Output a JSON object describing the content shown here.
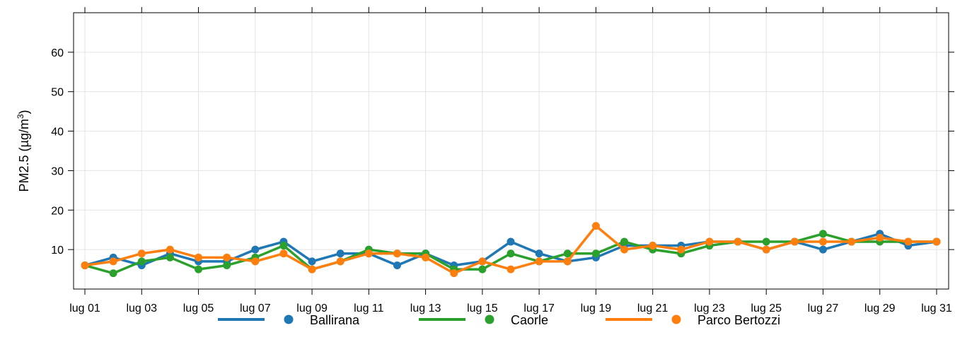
{
  "chart_data": {
    "type": "line",
    "ylabel": "PM2.5 (µg/m³)",
    "ylabel_parts": {
      "main": "PM2.5 (µg/m",
      "sup": "3",
      "close": ")"
    },
    "xlabel": "",
    "x": [
      "lug 01",
      "lug 02",
      "lug 03",
      "lug 04",
      "lug 05",
      "lug 06",
      "lug 07",
      "lug 08",
      "lug 09",
      "lug 10",
      "lug 11",
      "lug 12",
      "lug 13",
      "lug 14",
      "lug 15",
      "lug 16",
      "lug 17",
      "lug 18",
      "lug 19",
      "lug 20",
      "lug 21",
      "lug 22",
      "lug 23",
      "lug 24",
      "lug 25",
      "lug 26",
      "lug 27",
      "lug 28",
      "lug 29",
      "lug 30",
      "lug 31"
    ],
    "x_tick_labels": [
      "lug 01",
      "lug 03",
      "lug 05",
      "lug 07",
      "lug 09",
      "lug 11",
      "lug 13",
      "lug 15",
      "lug 17",
      "lug 19",
      "lug 21",
      "lug 23",
      "lug 25",
      "lug 27",
      "lug 29",
      "lug 31"
    ],
    "y_tick_labels": [
      "10",
      "20",
      "30",
      "40",
      "50",
      "60"
    ],
    "y_ticks": [
      10,
      20,
      30,
      40,
      50,
      60
    ],
    "ylim": [
      0,
      70
    ],
    "grid": true,
    "legend_position": "bottom",
    "series": [
      {
        "name": "Ballirana",
        "color": "#1f77b4",
        "values": [
          6,
          8,
          6,
          9,
          7,
          7,
          10,
          12,
          7,
          9,
          9,
          6,
          9,
          6,
          7,
          12,
          9,
          7,
          8,
          11,
          11,
          11,
          12,
          12,
          10,
          12,
          10,
          12,
          14,
          11,
          12
        ]
      },
      {
        "name": "Caorle",
        "color": "#2ca02c",
        "values": [
          6,
          4,
          7,
          8,
          5,
          6,
          8,
          11,
          5,
          7,
          10,
          9,
          9,
          5,
          5,
          9,
          7,
          9,
          9,
          12,
          10,
          9,
          11,
          12,
          12,
          12,
          14,
          12,
          12,
          12,
          12
        ]
      },
      {
        "name": "Parco Bertozzi",
        "color": "#ff7f0e",
        "values": [
          6,
          7,
          9,
          10,
          8,
          8,
          7,
          9,
          5,
          7,
          9,
          9,
          8,
          4,
          7,
          5,
          7,
          7,
          16,
          10,
          11,
          10,
          12,
          12,
          10,
          12,
          12,
          12,
          13,
          12,
          12
        ]
      }
    ]
  }
}
